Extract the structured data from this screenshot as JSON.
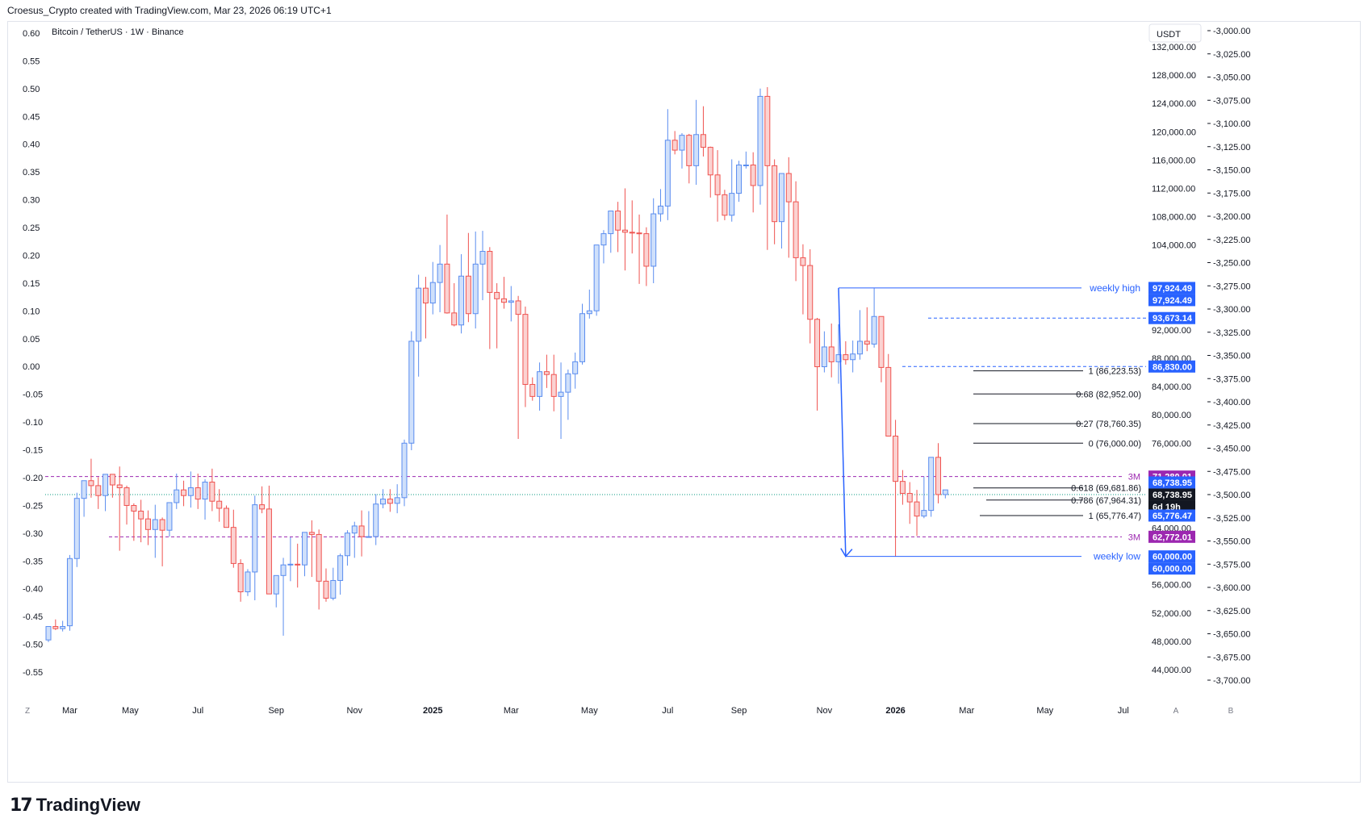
{
  "header": {
    "attribution": "Croesus_Crypto created with TradingView.com, Mar 23, 2026 06:19 UTC+1"
  },
  "chart_data": {
    "type": "candlestick",
    "title": "Bitcoin / TetherUS · 1W · Binance",
    "currency_button": "USDT",
    "y_axis_right": {
      "min": 44000,
      "max": 132000,
      "ticks": [
        "44,000.00",
        "48,000.00",
        "52,000.00",
        "56,000.00",
        "64,000.00",
        "76,000.00",
        "80,000.00",
        "84,000.00",
        "88,000.00",
        "92,000.00",
        "96,000.00",
        "104,000.00",
        "108,000.00",
        "112,000.00",
        "116,000.00",
        "120,000.00",
        "124,000.00",
        "128,000.00",
        "132,000.00"
      ],
      "tick_values": [
        44000,
        48000,
        52000,
        56000,
        64000,
        76000,
        80000,
        84000,
        88000,
        92000,
        96000,
        104000,
        108000,
        112000,
        116000,
        120000,
        124000,
        128000,
        132000
      ]
    },
    "y_axis_left": {
      "ticks": [
        "0.60",
        "0.55",
        "0.50",
        "0.45",
        "0.40",
        "0.35",
        "0.30",
        "0.25",
        "0.20",
        "0.15",
        "0.10",
        "0.05",
        "0.00",
        "-0.05",
        "-0.10",
        "-0.15",
        "-0.20",
        "-0.25",
        "-0.30",
        "-0.35",
        "-0.40",
        "-0.45",
        "-0.50",
        "-0.55"
      ],
      "tick_values": [
        0.6,
        0.55,
        0.5,
        0.45,
        0.4,
        0.35,
        0.3,
        0.25,
        0.2,
        0.15,
        0.1,
        0.05,
        0.0,
        -0.05,
        -0.1,
        -0.15,
        -0.2,
        -0.25,
        -0.3,
        -0.35,
        -0.4,
        -0.45,
        -0.5,
        -0.55
      ],
      "value_top": 0.6,
      "value_bottom": -0.55
    },
    "y_axis_far_right": {
      "ticks": [
        "-3,000.00",
        "-3,025.00",
        "-3,050.00",
        "-3,075.00",
        "-3,100.00",
        "-3,125.00",
        "-3,150.00",
        "-3,175.00",
        "-3,200.00",
        "-3,225.00",
        "-3,250.00",
        "-3,275.00",
        "-3,300.00",
        "-3,325.00",
        "-3,350.00",
        "-3,375.00",
        "-3,400.00",
        "-3,425.00",
        "-3,450.00",
        "-3,475.00",
        "-3,500.00",
        "-3,525.00",
        "-3,550.00",
        "-3,575.00",
        "-3,600.00",
        "-3,625.00",
        "-3,650.00",
        "-3,675.00",
        "-3,700.00"
      ],
      "tick_values": [
        -3000,
        -3025,
        -3050,
        -3075,
        -3100,
        -3125,
        -3150,
        -3175,
        -3200,
        -3225,
        -3250,
        -3275,
        -3300,
        -3325,
        -3350,
        -3375,
        -3400,
        -3425,
        -3450,
        -3475,
        -3500,
        -3525,
        -3550,
        -3575,
        -3600,
        -3625,
        -3650,
        -3675,
        -3700
      ],
      "value_top": -3000,
      "value_bottom": -3700
    },
    "x_axis": {
      "labels": [
        "Mar",
        "May",
        "Jul",
        "Sep",
        "Nov",
        "2025",
        "Mar",
        "May",
        "Jul",
        "Sep",
        "Nov",
        "2026",
        "Mar",
        "May",
        "Jul"
      ],
      "bold": [
        false,
        false,
        false,
        false,
        false,
        true,
        false,
        false,
        false,
        false,
        false,
        true,
        false,
        false,
        false
      ],
      "label_index": [
        3,
        11.5,
        21,
        32,
        43,
        54,
        65,
        76,
        87,
        97,
        109,
        119,
        129,
        140,
        151
      ]
    },
    "candles": {
      "fields": [
        "open",
        "high",
        "low",
        "close"
      ],
      "up_color": "#5b8def",
      "down_color": "#ef5350",
      "data": [
        [
          48200,
          49800,
          47900,
          50100
        ],
        [
          50100,
          51100,
          49600,
          49800
        ],
        [
          49800,
          50900,
          49400,
          50100
        ],
        [
          50200,
          60200,
          49500,
          59700
        ],
        [
          59700,
          69000,
          58500,
          68200
        ],
        [
          68200,
          70700,
          65600,
          70700
        ],
        [
          70700,
          73800,
          68300,
          70000
        ],
        [
          70000,
          71200,
          66700,
          68600
        ],
        [
          68600,
          71000,
          66400,
          71600
        ],
        [
          71600,
          71600,
          68300,
          70100
        ],
        [
          70100,
          72700,
          60800,
          69700
        ],
        [
          69700,
          70000,
          64500,
          67200
        ],
        [
          67200,
          67500,
          62200,
          66400
        ],
        [
          66400,
          68000,
          62000,
          65300
        ],
        [
          65300,
          66500,
          61600,
          63800
        ],
        [
          63800,
          67300,
          59800,
          65200
        ],
        [
          65200,
          65500,
          58600,
          63700
        ],
        [
          63700,
          67600,
          62800,
          67600
        ],
        [
          67600,
          71700,
          66700,
          69400
        ],
        [
          69400,
          70700,
          67100,
          68600
        ],
        [
          68600,
          72000,
          66900,
          69700
        ],
        [
          69700,
          71700,
          66700,
          68100
        ],
        [
          68100,
          70900,
          65200,
          70500
        ],
        [
          70500,
          72400,
          66400,
          67800
        ],
        [
          67800,
          69500,
          64900,
          66800
        ],
        [
          66800,
          67200,
          64800,
          64100
        ],
        [
          64100,
          66600,
          58400,
          59000
        ],
        [
          59000,
          59600,
          53600,
          55000
        ],
        [
          55000,
          58200,
          54400,
          57800
        ],
        [
          57800,
          68600,
          53800,
          67300
        ],
        [
          67300,
          69900,
          66100,
          66700
        ],
        [
          66700,
          70000,
          65000,
          54700
        ],
        [
          54700,
          57100,
          52800,
          57300
        ],
        [
          57300,
          59800,
          48800,
          58800
        ],
        [
          58800,
          62700,
          56500,
          58900
        ],
        [
          58900,
          61800,
          55600,
          58800
        ],
        [
          58800,
          61500,
          57200,
          63400
        ],
        [
          63400,
          65100,
          57100,
          63100
        ],
        [
          63100,
          63800,
          52500,
          56500
        ],
        [
          56500,
          58300,
          53600,
          54100
        ],
        [
          54100,
          58400,
          53800,
          56600
        ],
        [
          56600,
          60400,
          54600,
          60100
        ],
        [
          60100,
          63700,
          58700,
          63300
        ],
        [
          63300,
          64900,
          59800,
          64300
        ],
        [
          64300,
          66500,
          60000,
          62800
        ],
        [
          62800,
          66400,
          62700,
          62800
        ],
        [
          62800,
          68800,
          61600,
          67400
        ],
        [
          67400,
          69500,
          66800,
          68100
        ],
        [
          68100,
          69500,
          66300,
          67500
        ],
        [
          67500,
          70200,
          66100,
          68300
        ],
        [
          68300,
          76500,
          67100,
          76000
        ],
        [
          76000,
          91800,
          75000,
          90400
        ],
        [
          90400,
          99800,
          85400,
          97900
        ],
        [
          97900,
          99500,
          90800,
          95800
        ],
        [
          95800,
          101600,
          94200,
          98700
        ],
        [
          98700,
          104000,
          94500,
          101300
        ],
        [
          101300,
          108300,
          94300,
          94400
        ],
        [
          94400,
          98600,
          92500,
          92700
        ],
        [
          92700,
          102700,
          91500,
          99600
        ],
        [
          99600,
          105700,
          93100,
          94300
        ],
        [
          94300,
          105900,
          92200,
          101300
        ],
        [
          101300,
          106000,
          96200,
          103100
        ],
        [
          103100,
          103700,
          89300,
          97300
        ],
        [
          97300,
          98600,
          89400,
          96400
        ],
        [
          96400,
          99500,
          95000,
          95900
        ],
        [
          95900,
          98200,
          93200,
          96100
        ],
        [
          96100,
          96800,
          76600,
          94200
        ],
        [
          94200,
          95300,
          81100,
          84300
        ],
        [
          84300,
          85300,
          82000,
          82600
        ],
        [
          82600,
          87400,
          80600,
          86100
        ],
        [
          86100,
          88500,
          83800,
          85700
        ],
        [
          85700,
          88500,
          80500,
          82600
        ],
        [
          82600,
          87400,
          76600,
          83200
        ],
        [
          83200,
          86400,
          79300,
          85800
        ],
        [
          85800,
          88800,
          83700,
          87500
        ],
        [
          87500,
          95700,
          87100,
          94300
        ],
        [
          94300,
          97700,
          93600,
          94700
        ],
        [
          94700,
          104000,
          94000,
          104000
        ],
        [
          104000,
          106100,
          101400,
          105600
        ],
        [
          105600,
          107700,
          102900,
          108800
        ],
        [
          108800,
          110100,
          103000,
          106100
        ],
        [
          106100,
          112000,
          100400,
          105800
        ],
        [
          105800,
          110300,
          102800,
          105700
        ],
        [
          105700,
          108300,
          98500,
          105600
        ],
        [
          105600,
          106500,
          98200,
          101000
        ],
        [
          101000,
          110600,
          98600,
          108400
        ],
        [
          108400,
          111900,
          107300,
          109500
        ],
        [
          109500,
          123200,
          107500,
          118800
        ],
        [
          118800,
          120100,
          116800,
          117400
        ],
        [
          117400,
          119800,
          114800,
          119500
        ],
        [
          119500,
          119700,
          112700,
          115200
        ],
        [
          115200,
          124500,
          112500,
          119600
        ],
        [
          119600,
          123600,
          116500,
          117800
        ],
        [
          117800,
          117900,
          110700,
          113900
        ],
        [
          113900,
          117400,
          107300,
          111100
        ],
        [
          111100,
          111800,
          107500,
          108200
        ],
        [
          108200,
          116100,
          107300,
          111300
        ],
        [
          111300,
          115900,
          110100,
          115300
        ],
        [
          115300,
          117200,
          114800,
          115300
        ],
        [
          115300,
          117100,
          108600,
          112400
        ],
        [
          112400,
          126100,
          109700,
          125000
        ],
        [
          125000,
          126300,
          103300,
          115200
        ],
        [
          115200,
          116100,
          104100,
          107300
        ],
        [
          107300,
          114100,
          103500,
          114100
        ],
        [
          114100,
          116400,
          102200,
          110100
        ],
        [
          110100,
          113000,
          98900,
          102200
        ],
        [
          102200,
          104100,
          94200,
          101100
        ],
        [
          101100,
          103400,
          90100,
          93500
        ],
        [
          93500,
          93700,
          80600,
          86800
        ],
        [
          86800,
          91800,
          86000,
          89600
        ],
        [
          89600,
          92900,
          85300,
          87500
        ],
        [
          87500,
          92800,
          84400,
          88500
        ],
        [
          88500,
          90400,
          87100,
          87800
        ],
        [
          87800,
          90500,
          86000,
          88600
        ],
        [
          88600,
          94800,
          87800,
          90400
        ],
        [
          90400,
          95200,
          89000,
          90000
        ],
        [
          90000,
          97900,
          89500,
          93900
        ],
        [
          93900,
          93900,
          84600,
          86700
        ],
        [
          86700,
          88600,
          77000,
          77000
        ],
        [
          77000,
          79300,
          60000,
          70600
        ],
        [
          70600,
          72200,
          67300,
          68900
        ],
        [
          68900,
          70500,
          64600,
          67700
        ],
        [
          67700,
          69400,
          62900,
          65700
        ],
        [
          65700,
          71300,
          65400,
          66500
        ],
        [
          66500,
          74000,
          65600,
          74000
        ],
        [
          74000,
          76000,
          67500,
          68738.95
        ],
        [
          68738.95,
          69400,
          68200,
          69400
        ]
      ]
    },
    "fib_levels": [
      {
        "label": "1 (86,223.53)",
        "value": 86223.53
      },
      {
        "label": "0.68 (82,952.00)",
        "value": 82952
      },
      {
        "label": "0.27 (78,760.35)",
        "value": 78760.35
      },
      {
        "label": "0 (76,000.00)",
        "value": 76000
      },
      {
        "label": "0.618 (69,681.86)",
        "value": 69681.86
      },
      {
        "label": "0.786 (67,964.31)",
        "value": 67964.31
      },
      {
        "label": "1 (65,776.47)",
        "value": 65776.47
      }
    ],
    "annotations": {
      "weekly_high": {
        "label": "weekly high",
        "value": 97924.49
      },
      "weekly_low": {
        "label": "weekly low",
        "value": 60000
      },
      "three_month_high": {
        "label": "3M",
        "value": 71280.01
      },
      "three_month_low": {
        "label": "3M",
        "value": 62772.01
      },
      "level_93k": 93673.14,
      "level_86k": 86830
    },
    "price_tags": [
      {
        "text": "97,924.49",
        "value": 97924.49,
        "color": "#2962ff"
      },
      {
        "text": "97,924.49",
        "value": 97924.49,
        "color": "#2962ff",
        "stack": 1
      },
      {
        "text": "93,673.14",
        "value": 93673.14,
        "color": "#2962ff"
      },
      {
        "text": "86,830.00",
        "value": 86830,
        "color": "#2962ff"
      },
      {
        "text": "71,280.01",
        "value": 71280.01,
        "color": "#9c27b0"
      },
      {
        "text": "68,738.95",
        "value": 68738.95,
        "color": "#2962ff",
        "stack": -1
      },
      {
        "text": "68,738.95",
        "value": 68738.95,
        "color": "#131722"
      },
      {
        "text": "6d 19h",
        "value": 68738.95,
        "color": "#131722",
        "stack": 1
      },
      {
        "text": "65,776.47",
        "value": 65776.47,
        "color": "#2962ff"
      },
      {
        "text": "62,772.01",
        "value": 62772.01,
        "color": "#9c27b0"
      },
      {
        "text": "60,000.00",
        "value": 60000,
        "color": "#2962ff"
      },
      {
        "text": "60,000.00",
        "value": 60000,
        "color": "#2962ff",
        "stack": 1
      }
    ],
    "bottom_left_label": "Z",
    "bottom_right_labels": [
      "A",
      "B"
    ]
  },
  "footer": {
    "brand": "TradingView",
    "brand_mark": "17"
  }
}
